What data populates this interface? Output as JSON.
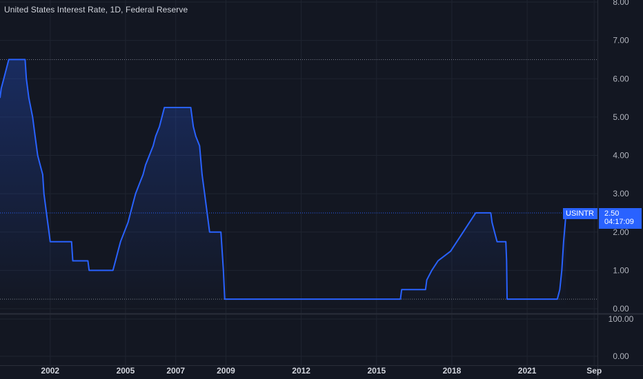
{
  "header": {
    "title": "United States Interest Rate, 1D, Federal Reserve"
  },
  "price_label": {
    "symbol": "USINTR",
    "value": "2.50",
    "countdown": "04:17:09"
  },
  "colors": {
    "background": "#131722",
    "line": "#2962ff",
    "grid": "#1f2430",
    "text": "#b2b5be"
  },
  "indicator_pane": {
    "ticks": [
      "100.00",
      "0.00"
    ]
  },
  "chart_data": {
    "type": "area",
    "title": "United States Interest Rate, 1D, Federal Reserve",
    "xlabel": "",
    "ylabel": "",
    "ylim": [
      0,
      8
    ],
    "xlim": [
      2000.0,
      2023.8
    ],
    "y_ticks": [
      "8.00",
      "7.00",
      "6.00",
      "5.00",
      "4.00",
      "3.00",
      "2.00",
      "1.00",
      "0.00"
    ],
    "x_ticks": [
      {
        "label": "2002",
        "x": 2002.0
      },
      {
        "label": "2005",
        "x": 2005.0
      },
      {
        "label": "2007",
        "x": 2007.0
      },
      {
        "label": "2009",
        "x": 2009.0
      },
      {
        "label": "2012",
        "x": 2012.0
      },
      {
        "label": "2015",
        "x": 2015.0
      },
      {
        "label": "2018",
        "x": 2018.0
      },
      {
        "label": "2021",
        "x": 2021.0
      },
      {
        "label": "Sep",
        "x": 2023.67
      }
    ],
    "reference_lines": [
      6.5,
      2.5,
      0.25
    ],
    "grid": true,
    "series": [
      {
        "points": [
          [
            2000.0,
            5.5
          ],
          [
            2000.05,
            5.75
          ],
          [
            2000.15,
            6.0
          ],
          [
            2000.35,
            6.5
          ],
          [
            2001.0,
            6.5
          ],
          [
            2001.05,
            6.0
          ],
          [
            2001.15,
            5.5
          ],
          [
            2001.3,
            5.0
          ],
          [
            2001.4,
            4.5
          ],
          [
            2001.5,
            4.0
          ],
          [
            2001.6,
            3.75
          ],
          [
            2001.7,
            3.5
          ],
          [
            2001.75,
            3.0
          ],
          [
            2001.85,
            2.5
          ],
          [
            2001.95,
            2.0
          ],
          [
            2002.0,
            1.75
          ],
          [
            2002.85,
            1.75
          ],
          [
            2002.9,
            1.25
          ],
          [
            2003.5,
            1.25
          ],
          [
            2003.55,
            1.0
          ],
          [
            2004.5,
            1.0
          ],
          [
            2004.6,
            1.25
          ],
          [
            2004.7,
            1.5
          ],
          [
            2004.8,
            1.75
          ],
          [
            2004.95,
            2.0
          ],
          [
            2005.1,
            2.25
          ],
          [
            2005.2,
            2.5
          ],
          [
            2005.3,
            2.75
          ],
          [
            2005.4,
            3.0
          ],
          [
            2005.55,
            3.25
          ],
          [
            2005.7,
            3.5
          ],
          [
            2005.8,
            3.75
          ],
          [
            2005.95,
            4.0
          ],
          [
            2006.1,
            4.25
          ],
          [
            2006.2,
            4.5
          ],
          [
            2006.35,
            4.75
          ],
          [
            2006.45,
            5.0
          ],
          [
            2006.55,
            5.25
          ],
          [
            2007.6,
            5.25
          ],
          [
            2007.7,
            4.75
          ],
          [
            2007.8,
            4.5
          ],
          [
            2007.95,
            4.25
          ],
          [
            2008.05,
            3.5
          ],
          [
            2008.15,
            3.0
          ],
          [
            2008.3,
            2.25
          ],
          [
            2008.35,
            2.0
          ],
          [
            2008.8,
            2.0
          ],
          [
            2008.85,
            1.5
          ],
          [
            2008.9,
            1.0
          ],
          [
            2008.95,
            0.25
          ],
          [
            2015.95,
            0.25
          ],
          [
            2016.0,
            0.5
          ],
          [
            2016.95,
            0.5
          ],
          [
            2017.0,
            0.75
          ],
          [
            2017.2,
            1.0
          ],
          [
            2017.45,
            1.25
          ],
          [
            2017.95,
            1.5
          ],
          [
            2018.2,
            1.75
          ],
          [
            2018.45,
            2.0
          ],
          [
            2018.7,
            2.25
          ],
          [
            2018.95,
            2.5
          ],
          [
            2019.55,
            2.5
          ],
          [
            2019.6,
            2.25
          ],
          [
            2019.7,
            2.0
          ],
          [
            2019.8,
            1.75
          ],
          [
            2020.15,
            1.75
          ],
          [
            2020.18,
            1.25
          ],
          [
            2020.2,
            0.25
          ],
          [
            2022.2,
            0.25
          ],
          [
            2022.3,
            0.5
          ],
          [
            2022.38,
            1.0
          ],
          [
            2022.45,
            1.75
          ],
          [
            2022.55,
            2.5
          ]
        ]
      }
    ]
  }
}
